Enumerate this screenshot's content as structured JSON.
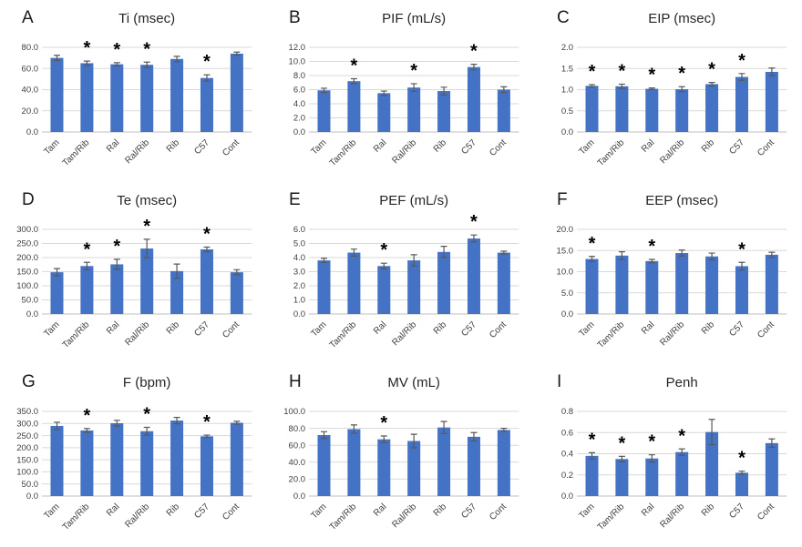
{
  "figure": {
    "description": "Nine-panel bar chart figure of plethysmography parameters with SEM error bars; asterisks mark significance",
    "colors": {
      "bar": "#4472C4",
      "error_bar": "#595959",
      "gridline": "#D9D9D9",
      "axis_line": "#BFBFBF",
      "tick_text": "#404040",
      "title_text": "#262626",
      "asterisk": "#000000",
      "background": "#FFFFFF"
    }
  },
  "chart_data": [
    {
      "panel": "A",
      "type": "bar",
      "title": "Ti (msec)",
      "categories": [
        "Tam",
        "Tam/Rib",
        "Ral",
        "Ral/Rib",
        "Rib",
        "C57",
        "Cont"
      ],
      "values": [
        70,
        65,
        64,
        63.5,
        69,
        51,
        74
      ],
      "errors": [
        2.5,
        2,
        1.5,
        2.5,
        2.5,
        3,
        1.5
      ],
      "significant": [
        false,
        true,
        true,
        true,
        false,
        true,
        false
      ],
      "ylim": [
        0,
        80
      ],
      "ytick_labels": [
        "0.0",
        "20.0",
        "40.0",
        "60.0",
        "80.0"
      ],
      "grid": true,
      "legend": "none"
    },
    {
      "panel": "B",
      "type": "bar",
      "title": "PIF (mL/s)",
      "categories": [
        "Tam",
        "Tam/Rib",
        "Ral",
        "Ral/Rib",
        "Rib",
        "C57",
        "Cont"
      ],
      "values": [
        5.9,
        7.2,
        5.5,
        6.3,
        5.8,
        9.2,
        6.0
      ],
      "errors": [
        0.3,
        0.35,
        0.3,
        0.55,
        0.55,
        0.4,
        0.4
      ],
      "significant": [
        false,
        true,
        false,
        true,
        false,
        true,
        false
      ],
      "ylim": [
        0,
        12
      ],
      "ytick_labels": [
        "0.0",
        "2.0",
        "4.0",
        "6.0",
        "8.0",
        "10.0",
        "12.0"
      ],
      "grid": true,
      "legend": "none"
    },
    {
      "panel": "C",
      "type": "bar",
      "title": "EIP (msec)",
      "categories": [
        "Tam",
        "Tam/Rib",
        "Ral",
        "Ral/Rib",
        "Rib",
        "C57",
        "Cont"
      ],
      "values": [
        1.09,
        1.08,
        1.02,
        1.01,
        1.13,
        1.3,
        1.42
      ],
      "errors": [
        0.03,
        0.05,
        0.02,
        0.06,
        0.04,
        0.08,
        0.09
      ],
      "significant": [
        true,
        true,
        true,
        true,
        true,
        true,
        false
      ],
      "ylim": [
        0,
        2
      ],
      "ytick_labels": [
        "0.0",
        "0.5",
        "1.0",
        "1.5",
        "2.0"
      ],
      "grid": true,
      "legend": "none"
    },
    {
      "panel": "D",
      "type": "bar",
      "title": "Te (msec)",
      "categories": [
        "Tam",
        "Tam/Rib",
        "Ral",
        "Ral/Rib",
        "Rib",
        "C57",
        "Cont"
      ],
      "values": [
        148,
        170,
        176,
        232,
        152,
        229,
        148
      ],
      "errors": [
        13,
        13,
        18,
        33,
        25,
        8,
        9
      ],
      "significant": [
        false,
        true,
        true,
        true,
        false,
        true,
        false
      ],
      "ylim": [
        0,
        300
      ],
      "ytick_labels": [
        "0.0",
        "50.0",
        "100.0",
        "150.0",
        "200.0",
        "250.0",
        "300.0"
      ],
      "grid": true,
      "legend": "none"
    },
    {
      "panel": "E",
      "type": "bar",
      "title": "PEF (mL/s)",
      "categories": [
        "Tam",
        "Tam/Rib",
        "Ral",
        "Ral/Rib",
        "Rib",
        "C57",
        "Cont"
      ],
      "values": [
        3.8,
        4.35,
        3.4,
        3.8,
        4.4,
        5.35,
        4.35
      ],
      "errors": [
        0.15,
        0.25,
        0.2,
        0.4,
        0.4,
        0.25,
        0.1
      ],
      "significant": [
        false,
        false,
        true,
        false,
        false,
        true,
        false
      ],
      "ylim": [
        0,
        6
      ],
      "ytick_labels": [
        "0.0",
        "1.0",
        "2.0",
        "3.0",
        "4.0",
        "5.0",
        "6.0"
      ],
      "grid": true,
      "legend": "none"
    },
    {
      "panel": "F",
      "type": "bar",
      "title": "EEP (msec)",
      "categories": [
        "Tam",
        "Tam/Rib",
        "Ral",
        "Ral/Rib",
        "Rib",
        "C57",
        "Cont"
      ],
      "values": [
        13.0,
        13.8,
        12.5,
        14.4,
        13.6,
        11.3,
        14.0
      ],
      "errors": [
        0.6,
        0.9,
        0.4,
        0.7,
        0.8,
        0.9,
        0.6
      ],
      "significant": [
        true,
        false,
        true,
        false,
        false,
        true,
        false
      ],
      "ylim": [
        0,
        20
      ],
      "ytick_labels": [
        "0.0",
        "5.0",
        "10.0",
        "15.0",
        "20.0"
      ],
      "grid": true,
      "legend": "none"
    },
    {
      "panel": "G",
      "type": "bar",
      "title": "F (bpm)",
      "categories": [
        "Tam",
        "Tam/Rib",
        "Ral",
        "Ral/Rib",
        "Rib",
        "C57",
        "Cont"
      ],
      "values": [
        290,
        271,
        301,
        268,
        312,
        247,
        303
      ],
      "errors": [
        15,
        8,
        12,
        16,
        13,
        5,
        6
      ],
      "significant": [
        false,
        true,
        false,
        true,
        false,
        true,
        false
      ],
      "ylim": [
        0,
        350
      ],
      "ytick_labels": [
        "0.0",
        "50.0",
        "100.0",
        "150.0",
        "200.0",
        "250.0",
        "300.0",
        "350.0"
      ],
      "grid": true,
      "legend": "none"
    },
    {
      "panel": "H",
      "type": "bar",
      "title": "MV (mL)",
      "categories": [
        "Tam",
        "Tam/Rib",
        "Ral",
        "Ral/Rib",
        "Rib",
        "C57",
        "Cont"
      ],
      "values": [
        72,
        79,
        67,
        65,
        81,
        70,
        78
      ],
      "errors": [
        4,
        5,
        4,
        8,
        7,
        5,
        2
      ],
      "significant": [
        false,
        false,
        true,
        false,
        false,
        false,
        false
      ],
      "ylim": [
        0,
        100
      ],
      "ytick_labels": [
        "0.0",
        "20.0",
        "40.0",
        "60.0",
        "80.0",
        "100.0"
      ],
      "grid": true,
      "legend": "none"
    },
    {
      "panel": "I",
      "type": "bar",
      "title": "Penh",
      "categories": [
        "Tam",
        "Tam/Rib",
        "Ral",
        "Ral/Rib",
        "Rib",
        "C57",
        "Cont"
      ],
      "values": [
        0.38,
        0.35,
        0.355,
        0.415,
        0.605,
        0.22,
        0.5
      ],
      "errors": [
        0.03,
        0.025,
        0.035,
        0.03,
        0.12,
        0.015,
        0.04
      ],
      "significant": [
        true,
        true,
        true,
        true,
        false,
        true,
        false
      ],
      "ylim": [
        0,
        0.8
      ],
      "ytick_labels": [
        "0.0",
        "0.2",
        "0.4",
        "0.6",
        "0.8"
      ],
      "grid": true,
      "legend": "none"
    }
  ]
}
